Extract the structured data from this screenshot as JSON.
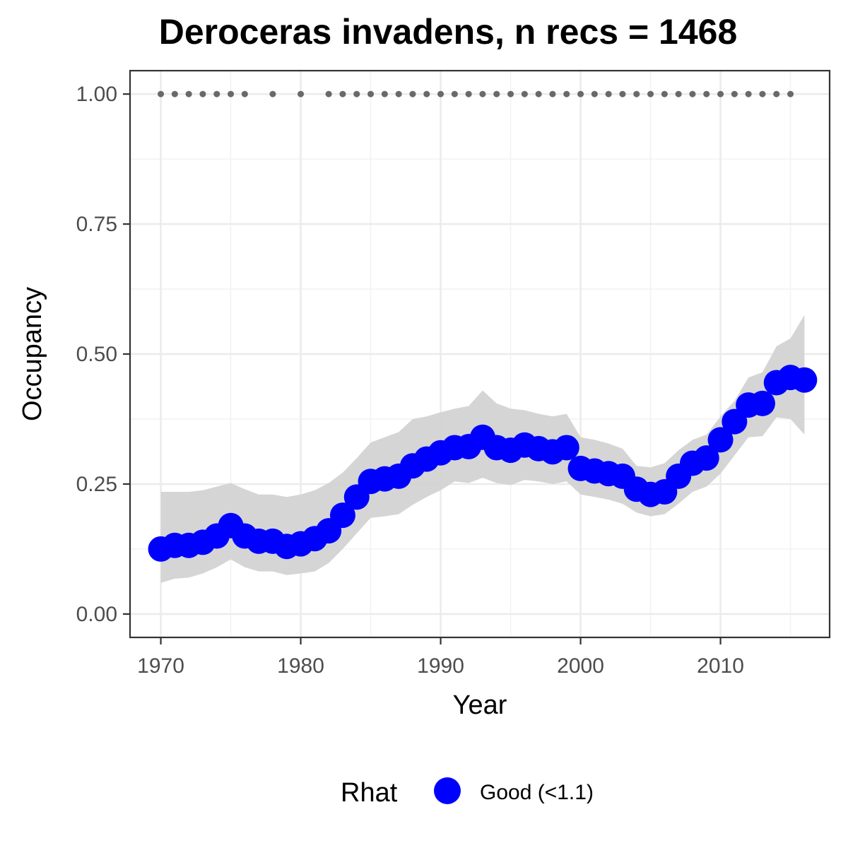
{
  "chart_data": {
    "type": "line",
    "title": "Deroceras invadens, n recs = 1468",
    "xlabel": "Year",
    "ylabel": "Occupancy",
    "xlim": [
      1967.8,
      2017.8
    ],
    "ylim": [
      -0.045,
      1.045
    ],
    "x_ticks": [
      1970,
      1980,
      1990,
      2000,
      2010
    ],
    "x_tick_labels": [
      "1970",
      "1980",
      "1990",
      "2000",
      "2010"
    ],
    "y_ticks": [
      0,
      0.25,
      0.5,
      0.75,
      1.0
    ],
    "y_tick_labels": [
      "0.00",
      "0.25",
      "0.50",
      "0.75",
      "1.00"
    ],
    "grid": true,
    "series": [
      {
        "name": "Good (<1.1)",
        "color": "#0000ff",
        "marker": "circle",
        "x": [
          1970,
          1971,
          1972,
          1973,
          1974,
          1975,
          1976,
          1977,
          1978,
          1979,
          1980,
          1981,
          1982,
          1983,
          1984,
          1985,
          1986,
          1987,
          1988,
          1989,
          1990,
          1991,
          1992,
          1993,
          1994,
          1995,
          1996,
          1997,
          1998,
          1999,
          2000,
          2001,
          2002,
          2003,
          2004,
          2005,
          2006,
          2007,
          2008,
          2009,
          2010,
          2011,
          2012,
          2013,
          2014,
          2015,
          2016
        ],
        "y": [
          0.125,
          0.132,
          0.132,
          0.138,
          0.15,
          0.17,
          0.15,
          0.14,
          0.14,
          0.13,
          0.135,
          0.145,
          0.16,
          0.19,
          0.225,
          0.255,
          0.26,
          0.265,
          0.285,
          0.298,
          0.31,
          0.32,
          0.322,
          0.34,
          0.32,
          0.315,
          0.325,
          0.318,
          0.312,
          0.32,
          0.28,
          0.275,
          0.27,
          0.265,
          0.24,
          0.23,
          0.235,
          0.265,
          0.29,
          0.3,
          0.335,
          0.37,
          0.402,
          0.405,
          0.445,
          0.455,
          0.45
        ]
      }
    ],
    "ribbon": {
      "color": "#d3d3d3",
      "x": [
        1970,
        1971,
        1972,
        1973,
        1974,
        1975,
        1976,
        1977,
        1978,
        1979,
        1980,
        1981,
        1982,
        1983,
        1984,
        1985,
        1986,
        1987,
        1988,
        1989,
        1990,
        1991,
        1992,
        1993,
        1994,
        1995,
        1996,
        1997,
        1998,
        1999,
        2000,
        2001,
        2002,
        2003,
        2004,
        2005,
        2006,
        2007,
        2008,
        2009,
        2010,
        2011,
        2012,
        2013,
        2014,
        2015,
        2016
      ],
      "lower": [
        0.06,
        0.068,
        0.07,
        0.078,
        0.09,
        0.105,
        0.09,
        0.082,
        0.082,
        0.075,
        0.078,
        0.082,
        0.098,
        0.125,
        0.155,
        0.185,
        0.188,
        0.192,
        0.21,
        0.225,
        0.238,
        0.255,
        0.252,
        0.262,
        0.252,
        0.248,
        0.258,
        0.255,
        0.25,
        0.255,
        0.23,
        0.225,
        0.22,
        0.212,
        0.195,
        0.188,
        0.192,
        0.212,
        0.235,
        0.245,
        0.27,
        0.305,
        0.34,
        0.342,
        0.378,
        0.375,
        0.345
      ],
      "upper": [
        0.235,
        0.235,
        0.235,
        0.238,
        0.245,
        0.252,
        0.24,
        0.23,
        0.23,
        0.225,
        0.23,
        0.238,
        0.252,
        0.272,
        0.3,
        0.33,
        0.34,
        0.35,
        0.375,
        0.38,
        0.388,
        0.395,
        0.4,
        0.43,
        0.405,
        0.395,
        0.392,
        0.385,
        0.38,
        0.385,
        0.34,
        0.335,
        0.328,
        0.318,
        0.285,
        0.282,
        0.29,
        0.315,
        0.335,
        0.345,
        0.38,
        0.41,
        0.455,
        0.465,
        0.515,
        0.53,
        0.575
      ]
    },
    "record_marker_years": [
      1970,
      1971,
      1972,
      1973,
      1974,
      1975,
      1976,
      1978,
      1980,
      1982,
      1983,
      1984,
      1985,
      1986,
      1987,
      1988,
      1989,
      1990,
      1991,
      1992,
      1993,
      1994,
      1995,
      1996,
      1997,
      1998,
      1999,
      2000,
      2001,
      2002,
      2003,
      2004,
      2005,
      2006,
      2007,
      2008,
      2009,
      2010,
      2011,
      2012,
      2013,
      2014,
      2015
    ],
    "record_marker_value": 1.0,
    "record_marker_color": "#696969",
    "legend": {
      "title": "Rhat",
      "position": "bottom",
      "entries": [
        {
          "label": "Good (<1.1)",
          "color": "#0000ff"
        }
      ]
    }
  }
}
